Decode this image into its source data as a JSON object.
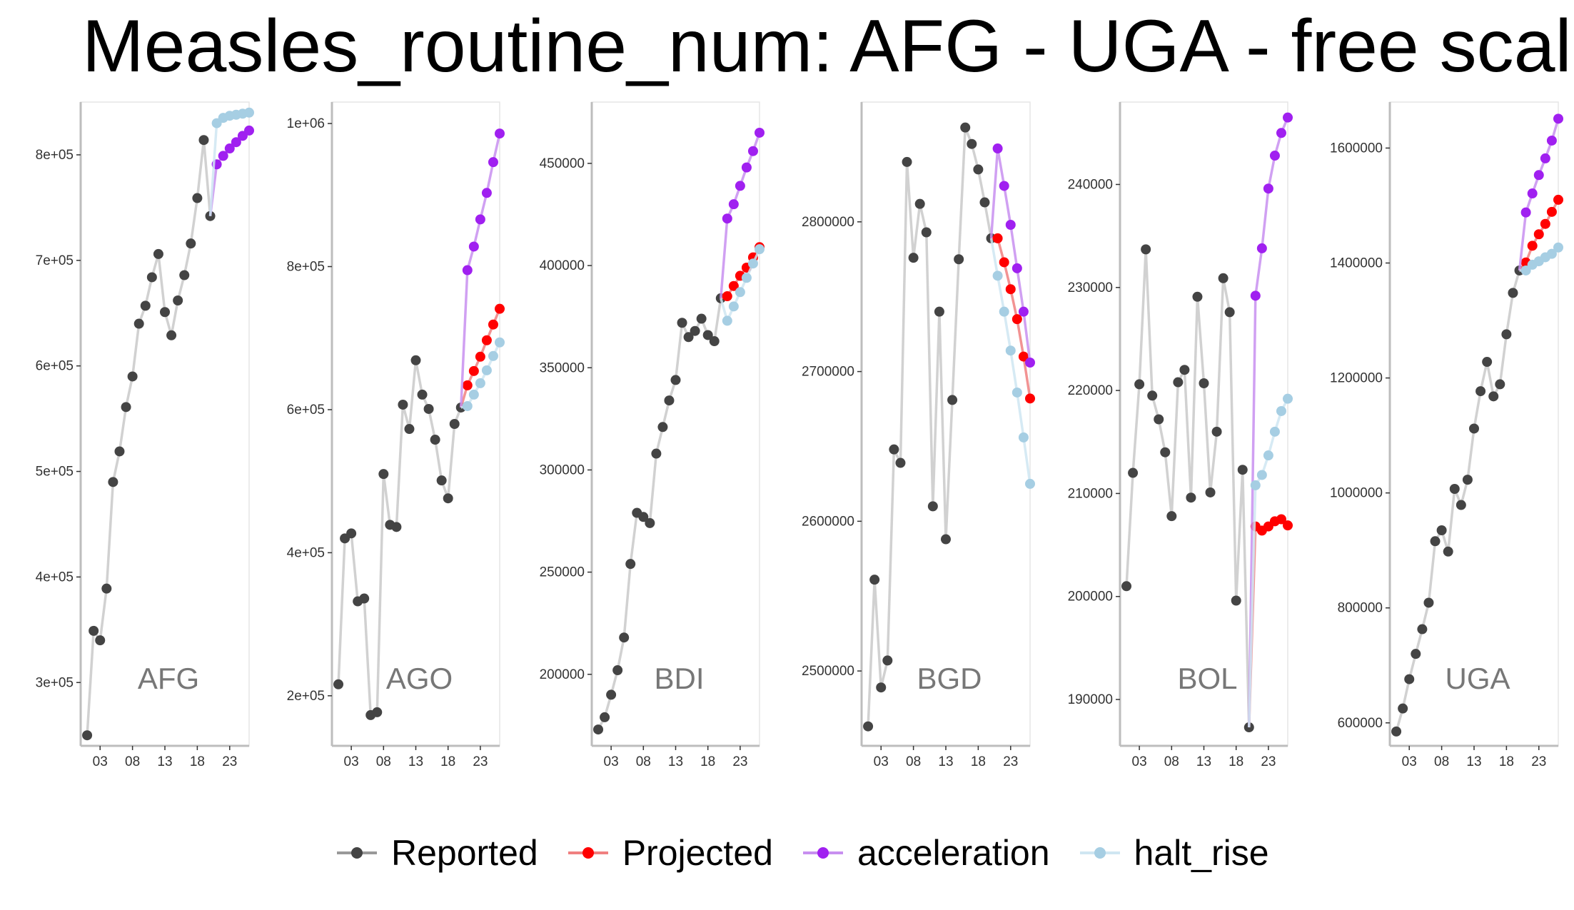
{
  "title": "Measles_routine_num: AFG - UGA - free scal",
  "legend": {
    "items": [
      {
        "name": "Reported",
        "line_color": "#999999",
        "point_color": "#444444"
      },
      {
        "name": "Projected",
        "line_color": "#F08080",
        "point_color": "#FF0000"
      },
      {
        "name": "acceleration",
        "line_color": "#C88FF0",
        "point_color": "#A020F0"
      },
      {
        "name": "halt_rise",
        "line_color": "#CFE6F2",
        "point_color": "#A6CEE3"
      }
    ]
  },
  "chart_data": [
    {
      "type": "line",
      "panel_label": "AFG",
      "xlim": [
        2000,
        2026
      ],
      "ylim": [
        240000,
        850000
      ],
      "x_ticks": [
        2003,
        2008,
        2013,
        2018,
        2023
      ],
      "x_tick_labels": [
        "03",
        "08",
        "13",
        "18",
        "23"
      ],
      "y_ticks": [
        300000,
        400000,
        500000,
        600000,
        700000,
        800000
      ],
      "y_tick_labels": [
        "3e+05",
        "4e+05",
        "5e+05",
        "6e+05",
        "7e+05",
        "8e+05"
      ],
      "series": [
        {
          "name": "Reported",
          "x": [
            2001,
            2002,
            2003,
            2004,
            2005,
            2006,
            2007,
            2008,
            2009,
            2010,
            2011,
            2012,
            2013,
            2014,
            2015,
            2016,
            2017,
            2018,
            2019,
            2020
          ],
          "y": [
            250000,
            349000,
            340000,
            389000,
            490000,
            519000,
            561000,
            590000,
            640000,
            657000,
            684000,
            706000,
            651000,
            629000,
            662000,
            686000,
            716000,
            759000,
            814000,
            742000
          ]
        },
        {
          "name": "Projected",
          "x": [],
          "y": []
        },
        {
          "name": "acceleration",
          "x": [
            2021,
            2022,
            2023,
            2024,
            2025,
            2026
          ],
          "y": [
            791000,
            799000,
            806000,
            812000,
            818000,
            823000
          ]
        },
        {
          "name": "halt_rise",
          "x": [
            2021,
            2022,
            2023,
            2024,
            2025,
            2026
          ],
          "y": [
            830000,
            835000,
            837000,
            838000,
            839000,
            840000
          ]
        }
      ]
    },
    {
      "type": "line",
      "panel_label": "AGO",
      "xlim": [
        2000,
        2026
      ],
      "ylim": [
        130000,
        1030000
      ],
      "x_ticks": [
        2003,
        2008,
        2013,
        2018,
        2023
      ],
      "x_tick_labels": [
        "03",
        "08",
        "13",
        "18",
        "23"
      ],
      "y_ticks": [
        200000,
        400000,
        600000,
        800000,
        1000000
      ],
      "y_tick_labels": [
        "2e+05",
        "4e+05",
        "6e+05",
        "8e+05",
        "1e+06"
      ],
      "series": [
        {
          "name": "Reported",
          "x": [
            2001,
            2002,
            2003,
            2004,
            2005,
            2006,
            2007,
            2008,
            2009,
            2010,
            2011,
            2012,
            2013,
            2014,
            2015,
            2016,
            2017,
            2018,
            2019,
            2020
          ],
          "y": [
            216000,
            420000,
            427000,
            332000,
            336000,
            173000,
            177000,
            510000,
            439000,
            436000,
            607000,
            573000,
            669000,
            621000,
            601000,
            558000,
            501000,
            476000,
            580000,
            603000
          ]
        },
        {
          "name": "Projected",
          "x": [
            2021,
            2022,
            2023,
            2024,
            2025,
            2026
          ],
          "y": [
            634000,
            654000,
            674000,
            697000,
            719000,
            741000
          ]
        },
        {
          "name": "acceleration",
          "x": [
            2021,
            2022,
            2023,
            2024,
            2025,
            2026
          ],
          "y": [
            795000,
            828000,
            866000,
            903000,
            946000,
            986000
          ]
        },
        {
          "name": "halt_rise",
          "x": [
            2021,
            2022,
            2023,
            2024,
            2025,
            2026
          ],
          "y": [
            605000,
            621000,
            637000,
            655000,
            675000,
            694000
          ]
        }
      ]
    },
    {
      "type": "line",
      "panel_label": "BDI",
      "xlim": [
        2000,
        2026
      ],
      "ylim": [
        165000,
        480000
      ],
      "x_ticks": [
        2003,
        2008,
        2013,
        2018,
        2023
      ],
      "x_tick_labels": [
        "03",
        "08",
        "13",
        "18",
        "23"
      ],
      "y_ticks": [
        200000,
        250000,
        300000,
        350000,
        400000,
        450000
      ],
      "y_tick_labels": [
        "200000",
        "250000",
        "300000",
        "350000",
        "400000",
        "450000"
      ],
      "series": [
        {
          "name": "Reported",
          "x": [
            2001,
            2002,
            2003,
            2004,
            2005,
            2006,
            2007,
            2008,
            2009,
            2010,
            2011,
            2012,
            2013,
            2014,
            2015,
            2016,
            2017,
            2018,
            2019,
            2020
          ],
          "y": [
            173000,
            179000,
            190000,
            202000,
            218000,
            254000,
            279000,
            277000,
            274000,
            308000,
            321000,
            334000,
            344000,
            372000,
            365000,
            368000,
            374000,
            366000,
            363000,
            384000
          ]
        },
        {
          "name": "Projected",
          "x": [
            2021,
            2022,
            2023,
            2024,
            2025,
            2026
          ],
          "y": [
            385000,
            390000,
            395000,
            399000,
            404000,
            409000
          ]
        },
        {
          "name": "acceleration",
          "x": [
            2021,
            2022,
            2023,
            2024,
            2025,
            2026
          ],
          "y": [
            423000,
            430000,
            439000,
            448000,
            456000,
            465000
          ]
        },
        {
          "name": "halt_rise",
          "x": [
            2021,
            2022,
            2023,
            2024,
            2025,
            2026
          ],
          "y": [
            373000,
            380000,
            387000,
            394000,
            401000,
            408000
          ]
        }
      ]
    },
    {
      "type": "line",
      "panel_label": "BGD",
      "xlim": [
        2000,
        2026
      ],
      "ylim": [
        2450000,
        2880000
      ],
      "x_ticks": [
        2003,
        2008,
        2013,
        2018,
        2023
      ],
      "x_tick_labels": [
        "03",
        "08",
        "13",
        "18",
        "23"
      ],
      "y_ticks": [
        2500000,
        2600000,
        2700000,
        2800000
      ],
      "y_tick_labels": [
        "2500000",
        "2600000",
        "2700000",
        "2800000"
      ],
      "series": [
        {
          "name": "Reported",
          "x": [
            2001,
            2002,
            2003,
            2004,
            2005,
            2006,
            2007,
            2008,
            2009,
            2010,
            2011,
            2012,
            2013,
            2014,
            2015,
            2016,
            2017,
            2018,
            2019,
            2020
          ],
          "y": [
            2463000,
            2561000,
            2489000,
            2507000,
            2648000,
            2639000,
            2840000,
            2776000,
            2812000,
            2793000,
            2610000,
            2740000,
            2588000,
            2681000,
            2775000,
            2863000,
            2852000,
            2835000,
            2813000,
            2789000
          ]
        },
        {
          "name": "Projected",
          "x": [
            2021,
            2022,
            2023,
            2024,
            2025,
            2026
          ],
          "y": [
            2789000,
            2773000,
            2755000,
            2735000,
            2710000,
            2682000
          ]
        },
        {
          "name": "acceleration",
          "x": [
            2021,
            2022,
            2023,
            2024,
            2025,
            2026
          ],
          "y": [
            2849000,
            2824000,
            2798000,
            2769000,
            2740000,
            2706000
          ]
        },
        {
          "name": "halt_rise",
          "x": [
            2021,
            2022,
            2023,
            2024,
            2025,
            2026
          ],
          "y": [
            2764000,
            2740000,
            2714000,
            2686000,
            2656000,
            2625000
          ]
        }
      ]
    },
    {
      "type": "line",
      "panel_label": "BOL",
      "xlim": [
        2000,
        2026
      ],
      "ylim": [
        185500,
        248000
      ],
      "x_ticks": [
        2003,
        2008,
        2013,
        2018,
        2023
      ],
      "x_tick_labels": [
        "03",
        "08",
        "13",
        "18",
        "23"
      ],
      "y_ticks": [
        190000,
        200000,
        210000,
        220000,
        230000,
        240000
      ],
      "y_tick_labels": [
        "190000",
        "200000",
        "210000",
        "220000",
        "230000",
        "240000"
      ],
      "series": [
        {
          "name": "Reported",
          "x": [
            2001,
            2002,
            2003,
            2004,
            2005,
            2006,
            2007,
            2008,
            2009,
            2010,
            2011,
            2012,
            2013,
            2014,
            2015,
            2016,
            2017,
            2018,
            2019,
            2020
          ],
          "y": [
            201000,
            212000,
            220600,
            233700,
            219500,
            217200,
            214000,
            207800,
            220800,
            222000,
            209600,
            229100,
            220700,
            210100,
            216000,
            230900,
            227600,
            199600,
            212300,
            187300
          ]
        },
        {
          "name": "Projected",
          "x": [
            2021,
            2022,
            2023,
            2024,
            2025,
            2026
          ],
          "y": [
            206800,
            206400,
            206800,
            207300,
            207500,
            206900
          ]
        },
        {
          "name": "acceleration",
          "x": [
            2021,
            2022,
            2023,
            2024,
            2025,
            2026
          ],
          "y": [
            229200,
            233800,
            239600,
            242800,
            245000,
            246500
          ]
        },
        {
          "name": "halt_rise",
          "x": [
            2021,
            2022,
            2023,
            2024,
            2025,
            2026
          ],
          "y": [
            210800,
            211800,
            213700,
            216000,
            218000,
            219200
          ]
        }
      ]
    },
    {
      "type": "line",
      "panel_label": "UGA",
      "xlim": [
        2000,
        2026
      ],
      "ylim": [
        560000,
        1680000
      ],
      "x_ticks": [
        2003,
        2008,
        2013,
        2018,
        2023
      ],
      "x_tick_labels": [
        "03",
        "08",
        "13",
        "18",
        "23"
      ],
      "y_ticks": [
        600000,
        800000,
        1000000,
        1200000,
        1400000,
        1600000
      ],
      "y_tick_labels": [
        "600000",
        "800000",
        "1000000",
        "1200000",
        "1400000",
        "1600000"
      ],
      "series": [
        {
          "name": "Reported",
          "x": [
            2001,
            2002,
            2003,
            2004,
            2005,
            2006,
            2007,
            2008,
            2009,
            2010,
            2011,
            2012,
            2013,
            2014,
            2015,
            2016,
            2017,
            2018,
            2019,
            2020
          ],
          "y": [
            585000,
            625000,
            676000,
            720000,
            763000,
            809000,
            916000,
            935000,
            898000,
            1007000,
            979000,
            1023000,
            1112000,
            1177000,
            1228000,
            1168000,
            1189000,
            1276000,
            1348000,
            1387000
          ]
        },
        {
          "name": "Projected",
          "x": [
            2021,
            2022,
            2023,
            2024,
            2025,
            2026
          ],
          "y": [
            1401000,
            1430000,
            1450000,
            1468000,
            1489000,
            1510000
          ]
        },
        {
          "name": "acceleration",
          "x": [
            2021,
            2022,
            2023,
            2024,
            2025,
            2026
          ],
          "y": [
            1488000,
            1521000,
            1553000,
            1582000,
            1613000,
            1651000
          ]
        },
        {
          "name": "halt_rise",
          "x": [
            2021,
            2022,
            2023,
            2024,
            2025,
            2026
          ],
          "y": [
            1387000,
            1397000,
            1403000,
            1410000,
            1416000,
            1427000
          ]
        }
      ]
    }
  ]
}
